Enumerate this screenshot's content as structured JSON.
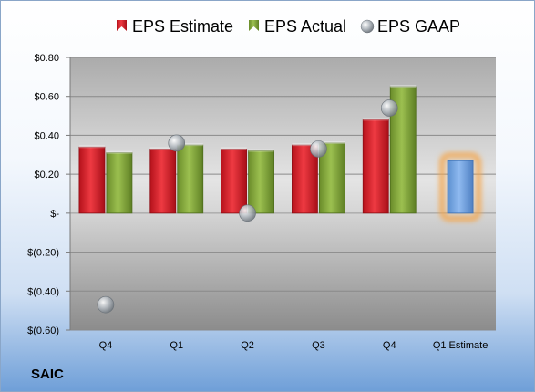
{
  "company": "SAIC",
  "colors": {
    "estimate": "#d0202a",
    "actual": "#7ea13a",
    "gaap": "#9ea6ad",
    "next_estimate": "#6c9fd8",
    "next_estimate_glow": "#f5a64a"
  },
  "chart_data": {
    "type": "bar",
    "categories": [
      "Q4",
      "Q1",
      "Q2",
      "Q3",
      "Q4",
      "Q1 Estimate"
    ],
    "ylim": [
      -0.6,
      0.8
    ],
    "yticks": [
      0.8,
      0.6,
      0.4,
      0.2,
      0.0,
      -0.2,
      -0.4,
      -0.6
    ],
    "ytick_labels": [
      "$0.80",
      "$0.60",
      "$0.40",
      "$0.20",
      "$-",
      "$(0.20)",
      "$(0.40)",
      "$(0.60)"
    ],
    "legend": {
      "position": "top",
      "entries": [
        "EPS Estimate",
        "EPS Actual",
        "EPS GAAP"
      ]
    },
    "series": [
      {
        "name": "EPS Estimate",
        "kind": "bar",
        "values": [
          0.34,
          0.33,
          0.33,
          0.35,
          0.48,
          null
        ]
      },
      {
        "name": "EPS Actual",
        "kind": "bar",
        "values": [
          0.31,
          0.35,
          0.32,
          0.36,
          0.65,
          null
        ]
      },
      {
        "name": "EPS GAAP",
        "kind": "marker",
        "values": [
          -0.47,
          0.36,
          0.0,
          0.33,
          0.54,
          null
        ]
      }
    ],
    "next_estimate": {
      "category": "Q1 Estimate",
      "value": 0.27
    }
  }
}
